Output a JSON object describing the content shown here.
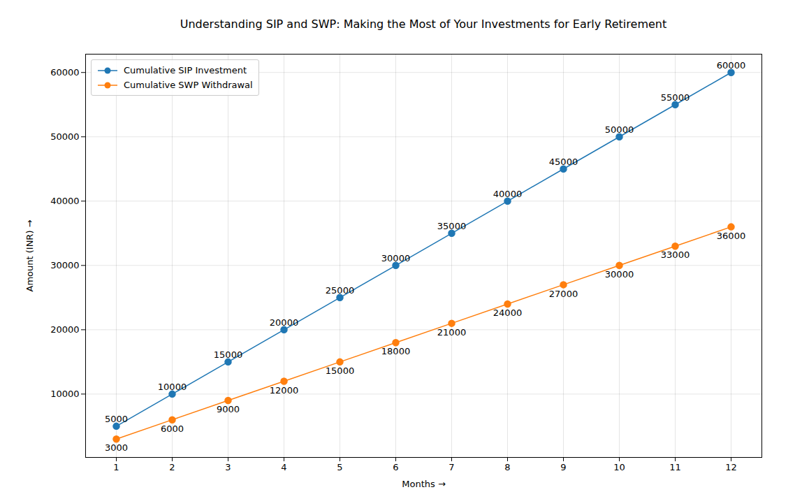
{
  "chart_data": {
    "type": "line",
    "title": "Understanding SIP and SWP: Making the Most of Your Investments for Early Retirement",
    "x_label": "Months",
    "y_label": "Amount (INR)",
    "x": [
      1,
      2,
      3,
      4,
      5,
      6,
      7,
      8,
      9,
      10,
      11,
      12
    ],
    "series": [
      {
        "name": "Cumulative SIP Investment",
        "color": "#1f77b4",
        "marker": "o",
        "values": [
          5000,
          10000,
          15000,
          20000,
          25000,
          30000,
          35000,
          40000,
          45000,
          50000,
          55000,
          60000
        ]
      },
      {
        "name": "Cumulative SWP Withdrawal",
        "color": "#ff7f0e",
        "marker": "o",
        "values": [
          3000,
          6000,
          9000,
          12000,
          15000,
          18000,
          21000,
          24000,
          27000,
          30000,
          33000,
          36000
        ]
      }
    ],
    "xlim": [
      0.45,
      12.55
    ],
    "xticks": [
      1,
      2,
      3,
      4,
      5,
      6,
      7,
      8,
      9,
      10,
      11,
      12
    ],
    "ylim": [
      150,
      62850
    ],
    "yticks": [
      10000,
      20000,
      30000,
      40000,
      50000,
      60000
    ],
    "grid": true,
    "legend": "upper left",
    "data_labels": true
  }
}
